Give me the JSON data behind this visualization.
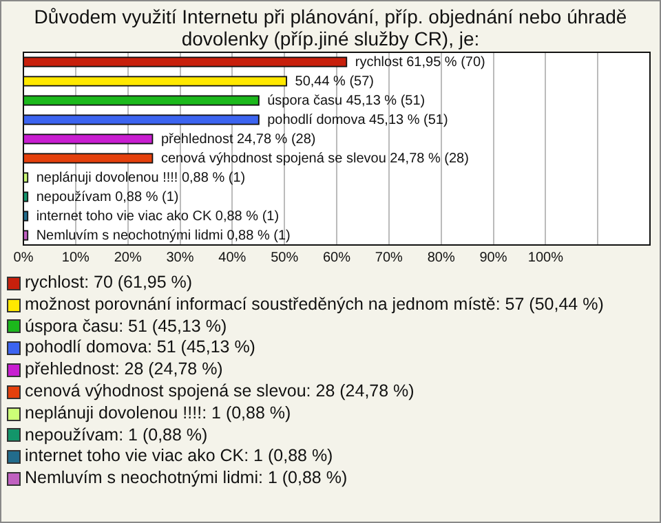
{
  "chart_data": {
    "type": "bar",
    "orientation": "horizontal",
    "title": "Důvodem využití Internetu při plánování, příp. objednání nebo úhradě dovolenky (příp.jiné služby CR), je:",
    "categories": [
      null,
      null,
      null,
      null,
      null,
      null,
      null,
      null,
      null,
      null
    ],
    "series": [
      {
        "name": "rychlost: 70 (61,95 %)",
        "color": "#c8200c",
        "values": [
          61.95,
          null,
          null,
          null,
          null,
          null,
          null,
          null,
          null,
          null
        ],
        "value_labels": [
          "rychlost 61,95 % (70)",
          null,
          null,
          null,
          null,
          null,
          null,
          null,
          null,
          null
        ]
      },
      {
        "name": "možnost porovnání informací soustředěných na jednom místě: 57 (50,44 %)",
        "color": "#ffe800",
        "values": [
          null,
          50.44,
          null,
          null,
          null,
          null,
          null,
          null,
          null,
          null
        ],
        "value_labels": [
          null,
          "50,44 % (57)",
          null,
          null,
          null,
          null,
          null,
          null,
          null,
          null
        ]
      },
      {
        "name": "úspora času: 51 (45,13 %)",
        "color": "#1cb81c",
        "values": [
          null,
          null,
          45.13,
          null,
          null,
          null,
          null,
          null,
          null,
          null
        ],
        "value_labels": [
          null,
          null,
          "úspora času 45,13 % (51)",
          null,
          null,
          null,
          null,
          null,
          null,
          null
        ]
      },
      {
        "name": "pohodlí domova: 51 (45,13 %)",
        "color": "#3c64f0",
        "values": [
          null,
          null,
          null,
          45.13,
          null,
          null,
          null,
          null,
          null,
          null
        ],
        "value_labels": [
          null,
          null,
          null,
          "pohodlí domova 45,13 % (51)",
          null,
          null,
          null,
          null,
          null,
          null
        ]
      },
      {
        "name": "přehlednost: 28 (24,78 %)",
        "color": "#c81ed0",
        "values": [
          null,
          null,
          null,
          null,
          24.78,
          null,
          null,
          null,
          null,
          null
        ],
        "value_labels": [
          null,
          null,
          null,
          null,
          "přehlednost 24,78 % (28)",
          null,
          null,
          null,
          null,
          null
        ]
      },
      {
        "name": "cenová výhodnost spojená se slevou: 28 (24,78 %)",
        "color": "#e4400c",
        "values": [
          null,
          null,
          null,
          null,
          null,
          24.78,
          null,
          null,
          null,
          null
        ],
        "value_labels": [
          null,
          null,
          null,
          null,
          null,
          "cenová výhodnost spojená se slevou 24,78 % (28)",
          null,
          null,
          null,
          null
        ]
      },
      {
        "name": "neplánuji dovolenou !!!!: 1 (0,88 %)",
        "color": "#ccff77",
        "values": [
          null,
          null,
          null,
          null,
          null,
          null,
          0.88,
          null,
          null,
          null
        ],
        "value_labels": [
          null,
          null,
          null,
          null,
          null,
          null,
          "neplánuji dovolenou !!!! 0,88 % (1)",
          null,
          null,
          null
        ]
      },
      {
        "name": "nepoužívam: 1 (0,88 %)",
        "color": "#13956a",
        "values": [
          null,
          null,
          null,
          null,
          null,
          null,
          null,
          0.88,
          null,
          null
        ],
        "value_labels": [
          null,
          null,
          null,
          null,
          null,
          null,
          null,
          "nepoužívam 0,88 % (1)",
          null,
          null
        ]
      },
      {
        "name": "internet toho vie viac ako CK: 1 (0,88 %)",
        "color": "#226c8c",
        "values": [
          null,
          null,
          null,
          null,
          null,
          null,
          null,
          null,
          0.88,
          null
        ],
        "value_labels": [
          null,
          null,
          null,
          null,
          null,
          null,
          null,
          null,
          "internet toho vie viac ako CK 0,88 % (1)",
          null
        ]
      },
      {
        "name": "Nemluvím s neochotnými lidmi: 1 (0,88 %)",
        "color": "#c060c0",
        "values": [
          null,
          null,
          null,
          null,
          null,
          null,
          null,
          null,
          null,
          0.88
        ],
        "value_labels": [
          null,
          null,
          null,
          null,
          null,
          null,
          null,
          null,
          null,
          "Nemluvím s neochotnými lidmi 0,88 % (1)"
        ]
      }
    ],
    "xlim": [
      0,
      120
    ],
    "xticks": [
      {
        "value": 0,
        "label": "0%"
      },
      {
        "value": 10,
        "label": "10%"
      },
      {
        "value": 20,
        "label": "20%"
      },
      {
        "value": 30,
        "label": "30%"
      },
      {
        "value": 40,
        "label": "40%"
      },
      {
        "value": 50,
        "label": "50%"
      },
      {
        "value": 60,
        "label": "60%"
      },
      {
        "value": 70,
        "label": "70%"
      },
      {
        "value": 80,
        "label": "80%"
      },
      {
        "value": 90,
        "label": "90%"
      },
      {
        "value": 100,
        "label": "100%"
      },
      {
        "value": 110,
        "label": null
      },
      {
        "value": 120,
        "label": null
      }
    ],
    "grid": "x",
    "legend": "bottom",
    "tick_labels": "x"
  }
}
